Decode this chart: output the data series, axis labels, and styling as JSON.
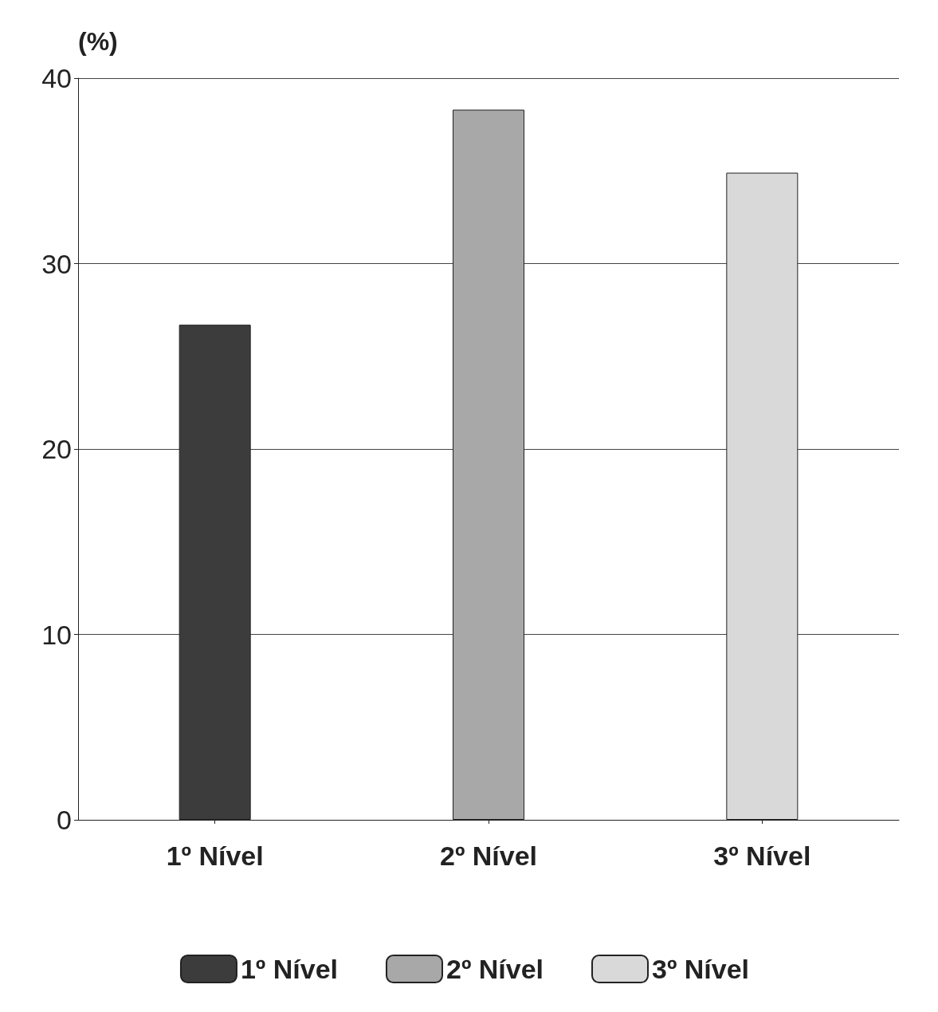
{
  "chart_data": {
    "type": "bar",
    "ylabel": "(%)",
    "categories": [
      "1º Nível",
      "2º Nível",
      "3º Nível"
    ],
    "series": [
      {
        "name": "1º Nível",
        "color": "#3c3c3c",
        "values": [
          26.7,
          null,
          null
        ]
      },
      {
        "name": "2º Nível",
        "color": "#a8a8a8",
        "values": [
          null,
          38.3,
          null
        ]
      },
      {
        "name": "3º Nível",
        "color": "#d9d9d9",
        "values": [
          null,
          null,
          34.9
        ]
      }
    ],
    "ylim": [
      0,
      40
    ],
    "yticks": [
      0,
      10,
      20,
      30,
      40
    ],
    "grid": "y",
    "legend": "bottom"
  }
}
